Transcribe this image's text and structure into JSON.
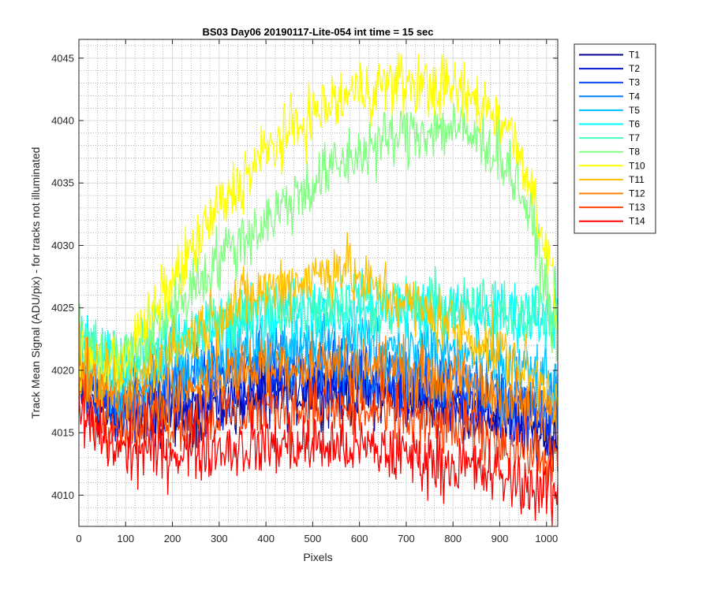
{
  "chart_data": {
    "type": "line",
    "title": "BS03 Day06 20190117-Lite-054 int time = 15 sec",
    "xlabel": "Pixels",
    "ylabel": "Track Mean Signal (ADU/pix) - for tracks not illuminated",
    "xlim": [
      0,
      1024
    ],
    "ylim": [
      4007.5,
      4046.5
    ],
    "xticks": [
      0,
      100,
      200,
      300,
      400,
      500,
      600,
      700,
      800,
      900,
      1000
    ],
    "yticks": [
      4010,
      4015,
      4020,
      4025,
      4030,
      4035,
      4040,
      4045
    ],
    "grid": true,
    "minor_grid": true,
    "legend_position": "outside-right",
    "series": [
      {
        "name": "T1",
        "color": "#00008f",
        "x": [
          0,
          50,
          100,
          200,
          300,
          400,
          500,
          600,
          700,
          800,
          900,
          1024
        ],
        "y": [
          4018.5,
          4017,
          4016,
          4016.5,
          4017,
          4018,
          4018.3,
          4018.2,
          4017.8,
          4017,
          4016,
          4014.5
        ],
        "noise": 1.6
      },
      {
        "name": "T2",
        "color": "#0014d4",
        "x": [
          0,
          50,
          100,
          200,
          300,
          400,
          500,
          600,
          700,
          800,
          900,
          1024
        ],
        "y": [
          4019,
          4017.5,
          4016.5,
          4017,
          4017.5,
          4018.5,
          4018.8,
          4018.5,
          4018,
          4017.3,
          4016.5,
          4015
        ],
        "noise": 1.6
      },
      {
        "name": "T3",
        "color": "#0040ff",
        "x": [
          0,
          50,
          100,
          200,
          300,
          400,
          500,
          600,
          700,
          800,
          900,
          1024
        ],
        "y": [
          4019.5,
          4018,
          4017.5,
          4018.5,
          4019.5,
          4020,
          4020,
          4019.5,
          4019,
          4018.5,
          4017.5,
          4016
        ],
        "noise": 1.6
      },
      {
        "name": "T4",
        "color": "#0080ff",
        "x": [
          0,
          50,
          100,
          200,
          300,
          400,
          500,
          600,
          700,
          800,
          900,
          1024
        ],
        "y": [
          4020,
          4018.5,
          4018,
          4019.5,
          4020.5,
          4021,
          4021,
          4020.5,
          4020,
          4019.5,
          4018.5,
          4017
        ],
        "noise": 1.6
      },
      {
        "name": "T5",
        "color": "#00bfff",
        "x": [
          0,
          50,
          100,
          200,
          300,
          400,
          500,
          600,
          700,
          800,
          900,
          1024
        ],
        "y": [
          4021,
          4019.5,
          4019,
          4020.5,
          4021.5,
          4022,
          4022.5,
          4022.5,
          4022,
          4021.5,
          4020.5,
          4019
        ],
        "noise": 1.6
      },
      {
        "name": "T6",
        "color": "#00ffff",
        "x": [
          0,
          50,
          100,
          200,
          300,
          400,
          500,
          600,
          700,
          800,
          900,
          1024
        ],
        "y": [
          4022,
          4020.5,
          4020.5,
          4022,
          4023.5,
          4024.5,
          4025,
          4025,
          4024.8,
          4024.6,
          4024.5,
          4024.5
        ],
        "noise": 1.6
      },
      {
        "name": "T7",
        "color": "#40ffbf",
        "x": [
          0,
          50,
          100,
          200,
          300,
          400,
          500,
          600,
          700,
          800,
          900,
          1024
        ],
        "y": [
          4022.5,
          4021,
          4021,
          4022.5,
          4024,
          4025,
          4025.5,
          4025.5,
          4025.2,
          4025,
          4024.8,
          4025
        ],
        "noise": 1.6
      },
      {
        "name": "T8",
        "color": "#80ff80",
        "x": [
          0,
          50,
          100,
          150,
          200,
          300,
          400,
          500,
          600,
          700,
          800,
          900,
          950,
          1000,
          1024
        ],
        "y": [
          4022,
          4020.5,
          4021,
          4023,
          4025,
          4029,
          4032,
          4035,
          4037.5,
          4039,
          4039.5,
          4037.5,
          4034,
          4027,
          4021
        ],
        "noise": 1.6
      },
      {
        "name": "T10",
        "color": "#ffff00",
        "x": [
          0,
          50,
          100,
          150,
          200,
          300,
          400,
          500,
          600,
          700,
          800,
          900,
          950,
          1000,
          1024
        ],
        "y": [
          4021,
          4020,
          4021,
          4024,
          4027,
          4033,
          4037.5,
          4040.5,
          4042.5,
          4043,
          4042.5,
          4040.5,
          4037,
          4030,
          4024
        ],
        "noise": 1.6
      },
      {
        "name": "T11",
        "color": "#ffbf00",
        "x": [
          0,
          50,
          100,
          200,
          300,
          400,
          500,
          570,
          600,
          700,
          800,
          900,
          1024
        ],
        "y": [
          4020.5,
          4019,
          4018.5,
          4021.5,
          4024.5,
          4026.5,
          4027.5,
          4028.5,
          4027,
          4025.5,
          4023.5,
          4021.5,
          4018
        ],
        "noise": 1.6
      },
      {
        "name": "T12",
        "color": "#ff8000",
        "x": [
          0,
          50,
          100,
          200,
          300,
          400,
          500,
          600,
          700,
          800,
          900,
          1024
        ],
        "y": [
          4019.5,
          4018,
          4017,
          4018,
          4019.5,
          4020.5,
          4020.5,
          4020.3,
          4019.8,
          4019,
          4018,
          4016
        ],
        "noise": 1.6
      },
      {
        "name": "T13",
        "color": "#ff4000",
        "x": [
          0,
          50,
          100,
          200,
          300,
          400,
          500,
          600,
          700,
          800,
          900,
          1024
        ],
        "y": [
          4018,
          4016.5,
          4015.5,
          4016,
          4016.5,
          4017,
          4017,
          4016.8,
          4016.2,
          4015.5,
          4014.5,
          4012.5
        ],
        "noise": 1.6
      },
      {
        "name": "T14",
        "color": "#ff0000",
        "x": [
          0,
          50,
          100,
          200,
          300,
          400,
          500,
          600,
          700,
          800,
          900,
          1024
        ],
        "y": [
          4016.5,
          4014.5,
          4013.5,
          4013.5,
          4013.8,
          4014,
          4014,
          4013.8,
          4013.2,
          4012.5,
          4011.5,
          4010
        ],
        "noise": 1.6
      }
    ]
  }
}
